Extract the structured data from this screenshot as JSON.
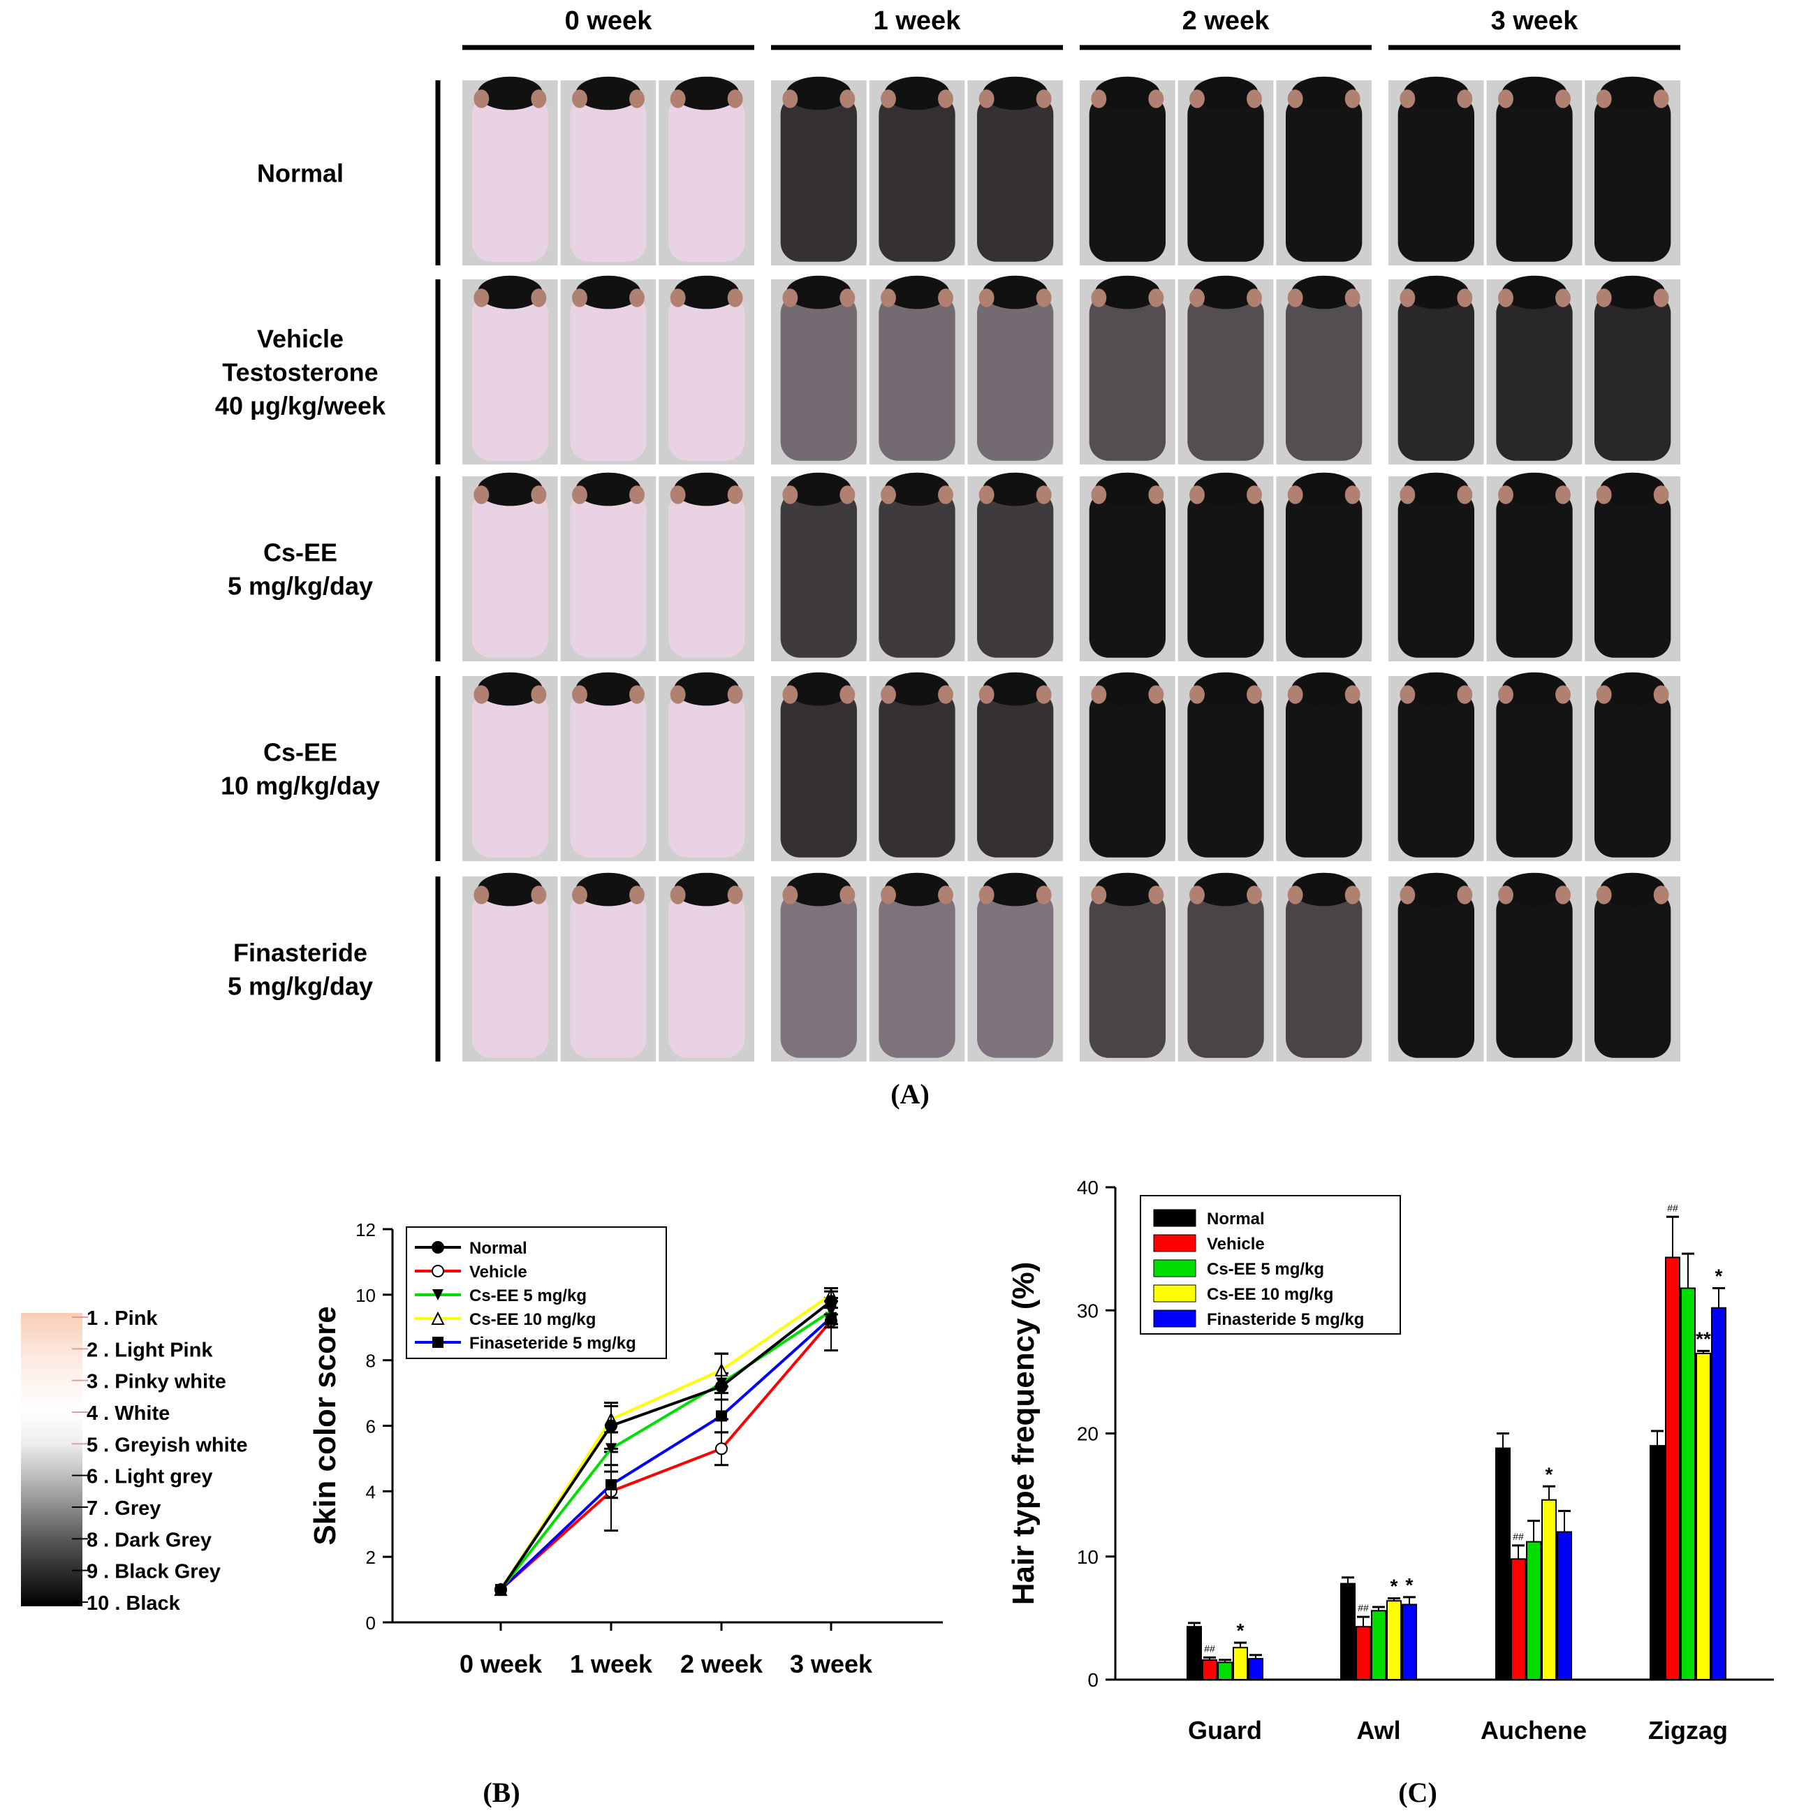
{
  "panelA": {
    "label": "(A)",
    "weeks": [
      "0 week",
      "1 week",
      "2 week",
      "3 week"
    ],
    "groups": [
      {
        "lines": [
          "Normal"
        ]
      },
      {
        "lines": [
          "Vehicle",
          "Testosterone",
          "40 μg/kg/week"
        ]
      },
      {
        "lines": [
          "Cs-EE",
          "5 mg/kg/day"
        ]
      },
      {
        "lines": [
          "Cs-EE",
          "10 mg/kg/day"
        ]
      },
      {
        "lines": [
          "Finasteride",
          "5 mg/kg/day"
        ]
      }
    ],
    "photo_coverage": [
      [
        0,
        0.85,
        1,
        1
      ],
      [
        0,
        0.55,
        0.7,
        0.9
      ],
      [
        0,
        0.8,
        1,
        1
      ],
      [
        0,
        0.85,
        1,
        1
      ],
      [
        0,
        0.5,
        0.75,
        1
      ]
    ]
  },
  "colorScale": {
    "items": [
      "1 . Pink",
      "2 . Light Pink",
      "3 . Pinky white",
      "4 . White",
      "5 . Greyish white",
      "6 . Light grey",
      "7 . Grey",
      "8 . Dark Grey",
      "9 . Black Grey",
      "10 . Black"
    ],
    "colors": [
      "#f9cdb4",
      "#fbe3d6",
      "#fdf3ee",
      "#ffffff",
      "#eeeeee",
      "#bdbdbd",
      "#8a8a8a",
      "#555555",
      "#2a2a2a",
      "#000000"
    ]
  },
  "panelB": {
    "label": "(B)",
    "chart_data": {
      "type": "line",
      "ylabel": "Skin color score",
      "xlabel": "",
      "categories": [
        "0 week",
        "1 week",
        "2 week",
        "3 week"
      ],
      "ylim": [
        0,
        12
      ],
      "yticks": [
        0,
        2,
        4,
        6,
        8,
        10,
        12
      ],
      "series": [
        {
          "name": "Normal",
          "color": "#000000",
          "marker": "circle-filled",
          "values": [
            1,
            6.0,
            7.2,
            9.8
          ],
          "errors": [
            0,
            0.7,
            1.0,
            0.4
          ]
        },
        {
          "name": "Vehicle",
          "color": "#ff0000",
          "marker": "circle-open",
          "values": [
            1,
            4.0,
            5.3,
            9.2
          ],
          "errors": [
            0,
            1.2,
            0.5,
            0.9
          ]
        },
        {
          "name": "Cs-EE 5 mg/kg",
          "color": "#00dd00",
          "marker": "triangle-down-filled",
          "values": [
            1,
            5.3,
            7.3,
            9.5
          ],
          "errors": [
            0,
            0.5,
            0.3,
            0.4
          ]
        },
        {
          "name": "Cs-EE 10 mg/kg",
          "color": "#ffff00",
          "marker": "triangle-up-open",
          "values": [
            1,
            6.2,
            7.7,
            10.0
          ],
          "errors": [
            0,
            0.4,
            0.5,
            0.2
          ]
        },
        {
          "name": "Finaseteride 5 mg/kg",
          "color": "#0000ff",
          "marker": "square-filled",
          "values": [
            1,
            4.2,
            6.3,
            9.3
          ],
          "errors": [
            0,
            0.4,
            0.5,
            0.3
          ]
        }
      ]
    }
  },
  "panelC": {
    "label": "(C)",
    "chart_data": {
      "type": "bar",
      "ylabel": "Hair type frequency (%)",
      "xlabel": "",
      "categories": [
        "Guard",
        "Awl",
        "Auchene",
        "Zigzag"
      ],
      "ylim": [
        0,
        40
      ],
      "yticks": [
        0,
        10,
        20,
        30,
        40
      ],
      "series": [
        {
          "name": "Normal",
          "color": "#000000",
          "values": [
            4.3,
            7.8,
            18.8,
            19.0
          ],
          "errors": [
            0.3,
            0.5,
            1.2,
            1.2
          ],
          "annotations": [
            "",
            "",
            "",
            ""
          ]
        },
        {
          "name": "Vehicle",
          "color": "#ff0000",
          "values": [
            1.6,
            4.3,
            9.8,
            34.3
          ],
          "errors": [
            0.2,
            0.8,
            1.1,
            3.3
          ],
          "annotations": [
            "##",
            "##",
            "##",
            "##"
          ]
        },
        {
          "name": "Cs-EE 5 mg/kg",
          "color": "#00dd00",
          "values": [
            1.4,
            5.6,
            11.2,
            31.8
          ],
          "errors": [
            0.2,
            0.3,
            1.7,
            2.8
          ],
          "annotations": [
            "",
            "",
            "",
            ""
          ]
        },
        {
          "name": "Cs-EE 10 mg/kg",
          "color": "#ffff00",
          "values": [
            2.6,
            6.4,
            14.6,
            26.5
          ],
          "errors": [
            0.4,
            0.2,
            1.1,
            0.2
          ],
          "annotations": [
            "*",
            "*",
            "*",
            "**"
          ]
        },
        {
          "name": "Finasteride 5 mg/kg",
          "color": "#0000ff",
          "values": [
            1.7,
            6.1,
            12.0,
            30.2
          ],
          "errors": [
            0.3,
            0.6,
            1.7,
            1.6
          ],
          "annotations": [
            "",
            "*",
            "",
            "*"
          ]
        }
      ]
    }
  }
}
